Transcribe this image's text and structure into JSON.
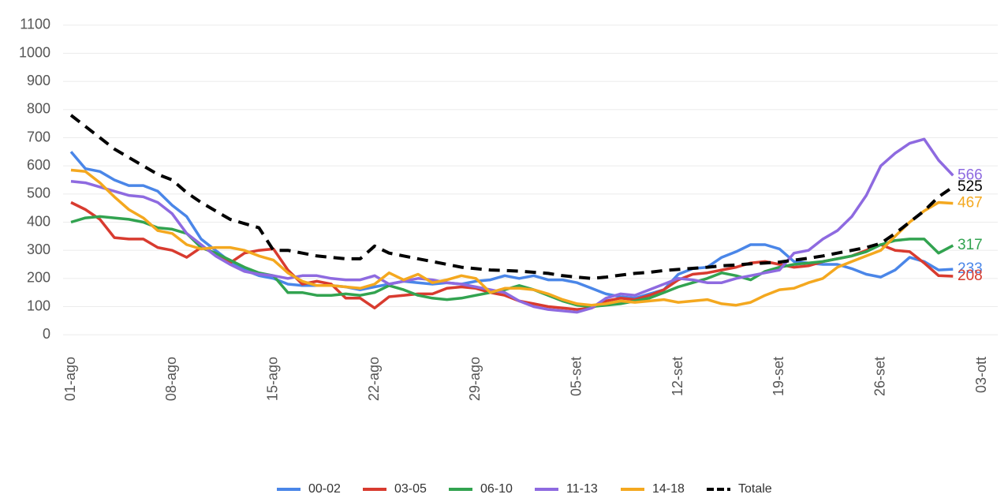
{
  "chart_data": {
    "type": "line",
    "categories": [
      "01-ago",
      null,
      null,
      null,
      null,
      null,
      null,
      "08-ago",
      null,
      null,
      null,
      null,
      null,
      null,
      "15-ago",
      null,
      null,
      null,
      null,
      null,
      null,
      "22-ago",
      null,
      null,
      null,
      null,
      null,
      null,
      "29-ago",
      null,
      null,
      null,
      null,
      null,
      null,
      "05-set",
      null,
      null,
      null,
      null,
      null,
      null,
      "12-set",
      null,
      null,
      null,
      null,
      null,
      null,
      "19-set",
      null,
      null,
      null,
      null,
      null,
      null,
      "26-set",
      null,
      null,
      null,
      null,
      null,
      null,
      "03-ott"
    ],
    "ylim": [
      -50,
      1150
    ],
    "yticks": [
      0,
      100,
      200,
      300,
      400,
      500,
      600,
      700,
      800,
      900,
      1000,
      1100
    ],
    "grid": true,
    "legend": "bottom",
    "series": [
      {
        "name": "00-02",
        "color": "#4a86e8",
        "values": [
          650,
          590,
          580,
          550,
          530,
          530,
          510,
          460,
          420,
          340,
          300,
          260,
          230,
          210,
          200,
          180,
          175,
          175,
          175,
          170,
          160,
          170,
          180,
          190,
          185,
          180,
          185,
          180,
          190,
          195,
          210,
          200,
          210,
          195,
          195,
          185,
          165,
          145,
          135,
          130,
          145,
          160,
          215,
          235,
          240,
          275,
          295,
          320,
          320,
          305,
          260,
          255,
          250,
          250,
          235,
          215,
          205,
          230,
          275,
          260,
          230,
          233,
          null,
          null
        ]
      },
      {
        "name": "03-05",
        "color": "#d83b2f",
        "values": [
          470,
          445,
          410,
          345,
          340,
          340,
          310,
          300,
          275,
          310,
          290,
          255,
          290,
          300,
          305,
          230,
          180,
          190,
          180,
          130,
          130,
          95,
          135,
          140,
          145,
          145,
          165,
          170,
          165,
          150,
          140,
          120,
          110,
          100,
          95,
          90,
          95,
          120,
          130,
          125,
          140,
          160,
          195,
          215,
          220,
          230,
          240,
          255,
          260,
          250,
          240,
          245,
          260,
          270,
          280,
          300,
          320,
          300,
          295,
          255,
          210,
          208,
          null,
          null
        ]
      },
      {
        "name": "06-10",
        "color": "#32a350",
        "values": [
          400,
          415,
          420,
          415,
          410,
          400,
          380,
          375,
          360,
          310,
          290,
          265,
          240,
          220,
          210,
          150,
          150,
          140,
          140,
          145,
          140,
          150,
          175,
          160,
          140,
          130,
          125,
          130,
          140,
          150,
          160,
          175,
          160,
          140,
          120,
          105,
          100,
          105,
          110,
          120,
          130,
          150,
          170,
          185,
          200,
          220,
          210,
          195,
          225,
          240,
          250,
          255,
          260,
          270,
          280,
          295,
          320,
          335,
          340,
          340,
          290,
          317,
          null,
          null
        ]
      },
      {
        "name": "11-13",
        "color": "#8e6ae0",
        "values": [
          545,
          540,
          525,
          510,
          495,
          490,
          470,
          430,
          360,
          320,
          280,
          250,
          225,
          215,
          210,
          200,
          210,
          210,
          200,
          195,
          195,
          210,
          180,
          190,
          200,
          195,
          185,
          180,
          170,
          160,
          150,
          120,
          100,
          90,
          85,
          80,
          95,
          130,
          145,
          140,
          160,
          180,
          200,
          195,
          185,
          185,
          200,
          210,
          220,
          230,
          290,
          300,
          340,
          370,
          420,
          495,
          600,
          645,
          680,
          695,
          620,
          566,
          null,
          null
        ]
      },
      {
        "name": "14-18",
        "color": "#f4a81f",
        "values": [
          585,
          580,
          540,
          490,
          445,
          415,
          370,
          360,
          320,
          305,
          310,
          310,
          300,
          280,
          265,
          220,
          190,
          175,
          175,
          170,
          165,
          180,
          220,
          195,
          215,
          185,
          195,
          210,
          200,
          150,
          165,
          165,
          160,
          145,
          125,
          110,
          105,
          110,
          120,
          115,
          120,
          125,
          115,
          120,
          125,
          110,
          105,
          115,
          140,
          160,
          165,
          185,
          200,
          240,
          260,
          280,
          300,
          350,
          400,
          440,
          470,
          467,
          null,
          null
        ]
      },
      {
        "name": "Totale",
        "color": "#000000",
        "dashed": true,
        "values": [
          780,
          740,
          700,
          660,
          630,
          600,
          570,
          550,
          505,
          470,
          440,
          410,
          395,
          380,
          300,
          300,
          290,
          280,
          275,
          270,
          270,
          315,
          290,
          280,
          270,
          260,
          250,
          240,
          235,
          230,
          228,
          226,
          222,
          218,
          210,
          205,
          200,
          205,
          212,
          218,
          222,
          228,
          232,
          236,
          240,
          245,
          248,
          252,
          255,
          258,
          265,
          272,
          280,
          290,
          300,
          310,
          325,
          360,
          400,
          440,
          490,
          525,
          null,
          null
        ]
      }
    ]
  }
}
